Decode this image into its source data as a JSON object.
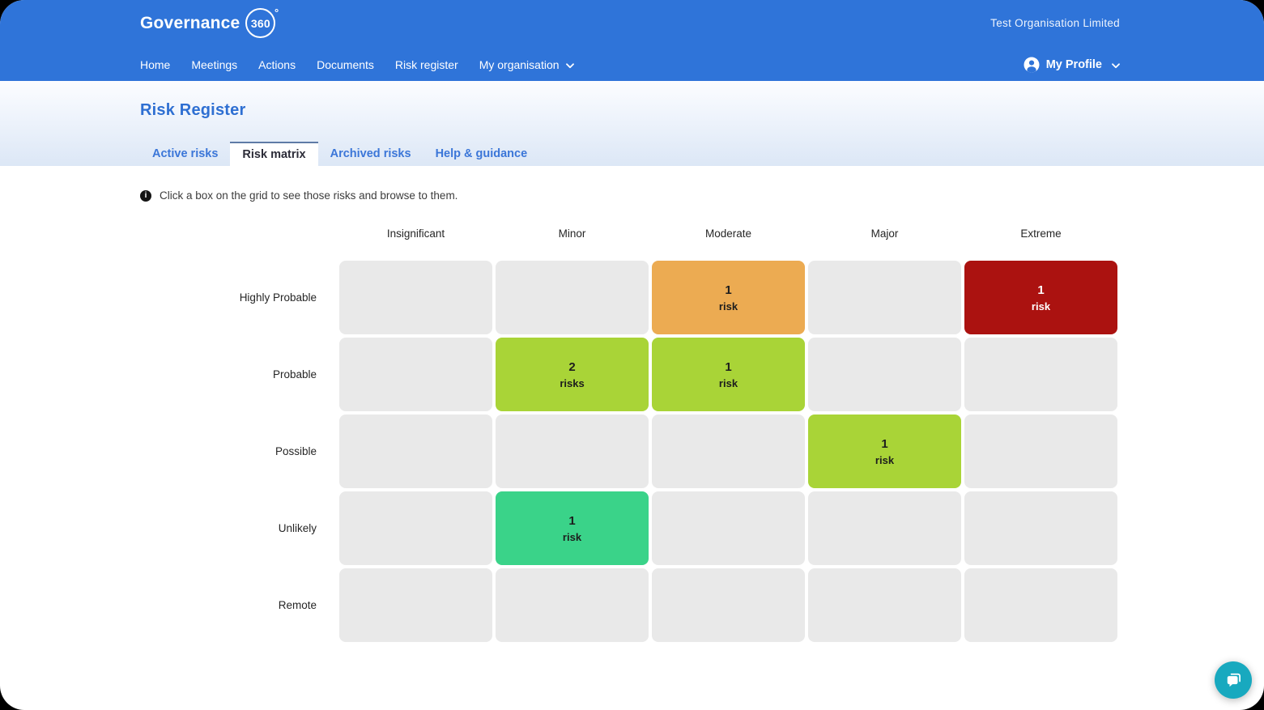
{
  "app": {
    "brand": {
      "name": "Governance",
      "badge": "360",
      "degree": "°"
    },
    "org_name": "Test Organisation Limited",
    "nav": [
      {
        "label": "Home",
        "has_dropdown": false
      },
      {
        "label": "Meetings",
        "has_dropdown": false
      },
      {
        "label": "Actions",
        "has_dropdown": false
      },
      {
        "label": "Documents",
        "has_dropdown": false
      },
      {
        "label": "Risk register",
        "has_dropdown": false
      },
      {
        "label": "My organisation",
        "has_dropdown": true
      }
    ],
    "profile": {
      "label": "My Profile"
    }
  },
  "page": {
    "title": "Risk Register",
    "tabs": [
      {
        "label": "Active risks",
        "active": false
      },
      {
        "label": "Risk matrix",
        "active": true
      },
      {
        "label": "Archived risks",
        "active": false
      },
      {
        "label": "Help & guidance",
        "active": false
      }
    ],
    "info_text": "Click a box on the grid to see those risks and browse to them."
  },
  "matrix": {
    "columns": [
      "Insignificant",
      "Minor",
      "Moderate",
      "Major",
      "Extreme"
    ],
    "rows": [
      "Highly Probable",
      "Probable",
      "Possible",
      "Unlikely",
      "Remote"
    ],
    "empty_cell_bg": "#e9e9e9",
    "cells": [
      {
        "row": 0,
        "col": 2,
        "count": "1",
        "unit": "risk",
        "bg": "#ecab52",
        "fg": "#1d1d1d"
      },
      {
        "row": 0,
        "col": 4,
        "count": "1",
        "unit": "risk",
        "bg": "#ab1210",
        "fg": "#ffffff"
      },
      {
        "row": 1,
        "col": 1,
        "count": "2",
        "unit": "risks",
        "bg": "#a9d437",
        "fg": "#1d1d1d"
      },
      {
        "row": 1,
        "col": 2,
        "count": "1",
        "unit": "risk",
        "bg": "#a9d437",
        "fg": "#1d1d1d"
      },
      {
        "row": 2,
        "col": 3,
        "count": "1",
        "unit": "risk",
        "bg": "#a9d437",
        "fg": "#1d1d1d"
      },
      {
        "row": 3,
        "col": 1,
        "count": "1",
        "unit": "risk",
        "bg": "#3ad389",
        "fg": "#1d1d1d"
      }
    ]
  },
  "colors": {
    "header_bg": "#2f74d9",
    "title_text": "#2e6fd2",
    "tab_inactive_text": "#3b76d8",
    "tab_active_text": "#2c2c38",
    "tab_active_border": "#5f7ba6",
    "cell_empty": "#e9e9e9",
    "cell_orange": "#ecab52",
    "cell_dark_red": "#ab1210",
    "cell_yellow_green": "#a9d437",
    "cell_teal_green": "#3ad389",
    "chat_button_bg": "#18a9bf"
  },
  "chat_widget": {
    "icon": "chat-bubbles"
  }
}
